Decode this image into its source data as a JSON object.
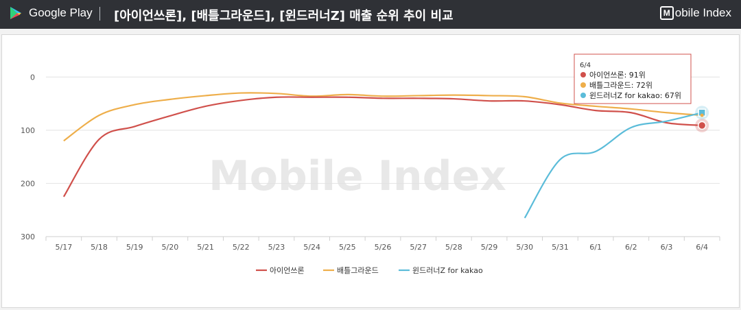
{
  "header": {
    "store_label": "Google Play",
    "title": "[아이언쓰론], [배틀그라운드], [윈드러너Z]  매출 순위 추이 비교",
    "brand_label": "obile Index",
    "brand_mark": "M"
  },
  "watermark": "Mobile Index",
  "colors": {
    "header_bg": "#2f3136",
    "iron": "#d0504b",
    "battle": "#eeae4a",
    "wind": "#5bbcd9"
  },
  "tooltip": {
    "date": "6/4",
    "lines": [
      "아이언쓰론: 91위",
      "배틀그라운드: 72위",
      "윈드러너Z for kakao: 67위"
    ]
  },
  "chart_data": {
    "type": "line",
    "x": [
      "5/17",
      "5/18",
      "5/19",
      "5/20",
      "5/21",
      "5/22",
      "5/23",
      "5/24",
      "5/25",
      "5/26",
      "5/27",
      "5/28",
      "5/29",
      "5/30",
      "5/31",
      "6/1",
      "6/2",
      "6/3",
      "6/4"
    ],
    "y_ticks": [
      "0",
      "100",
      "200",
      "300"
    ],
    "ylim": [
      300,
      -30
    ],
    "y_reversed": true,
    "grid": true,
    "legend_position": "bottom",
    "series": [
      {
        "name": "아이언쓰론",
        "values": [
          225,
          117,
          93,
          73,
          55,
          44,
          38,
          38,
          38,
          40,
          40,
          41,
          45,
          45,
          52,
          63,
          67,
          86,
          91
        ]
      },
      {
        "name": "배틀그라운드",
        "values": [
          120,
          72,
          52,
          42,
          35,
          30,
          31,
          36,
          33,
          36,
          35,
          34,
          35,
          37,
          49,
          55,
          60,
          67,
          72
        ]
      },
      {
        "name": "윈드러너Z for kakao",
        "values": [
          null,
          null,
          null,
          null,
          null,
          null,
          null,
          null,
          null,
          null,
          null,
          null,
          null,
          265,
          155,
          140,
          95,
          83,
          67
        ]
      }
    ]
  }
}
